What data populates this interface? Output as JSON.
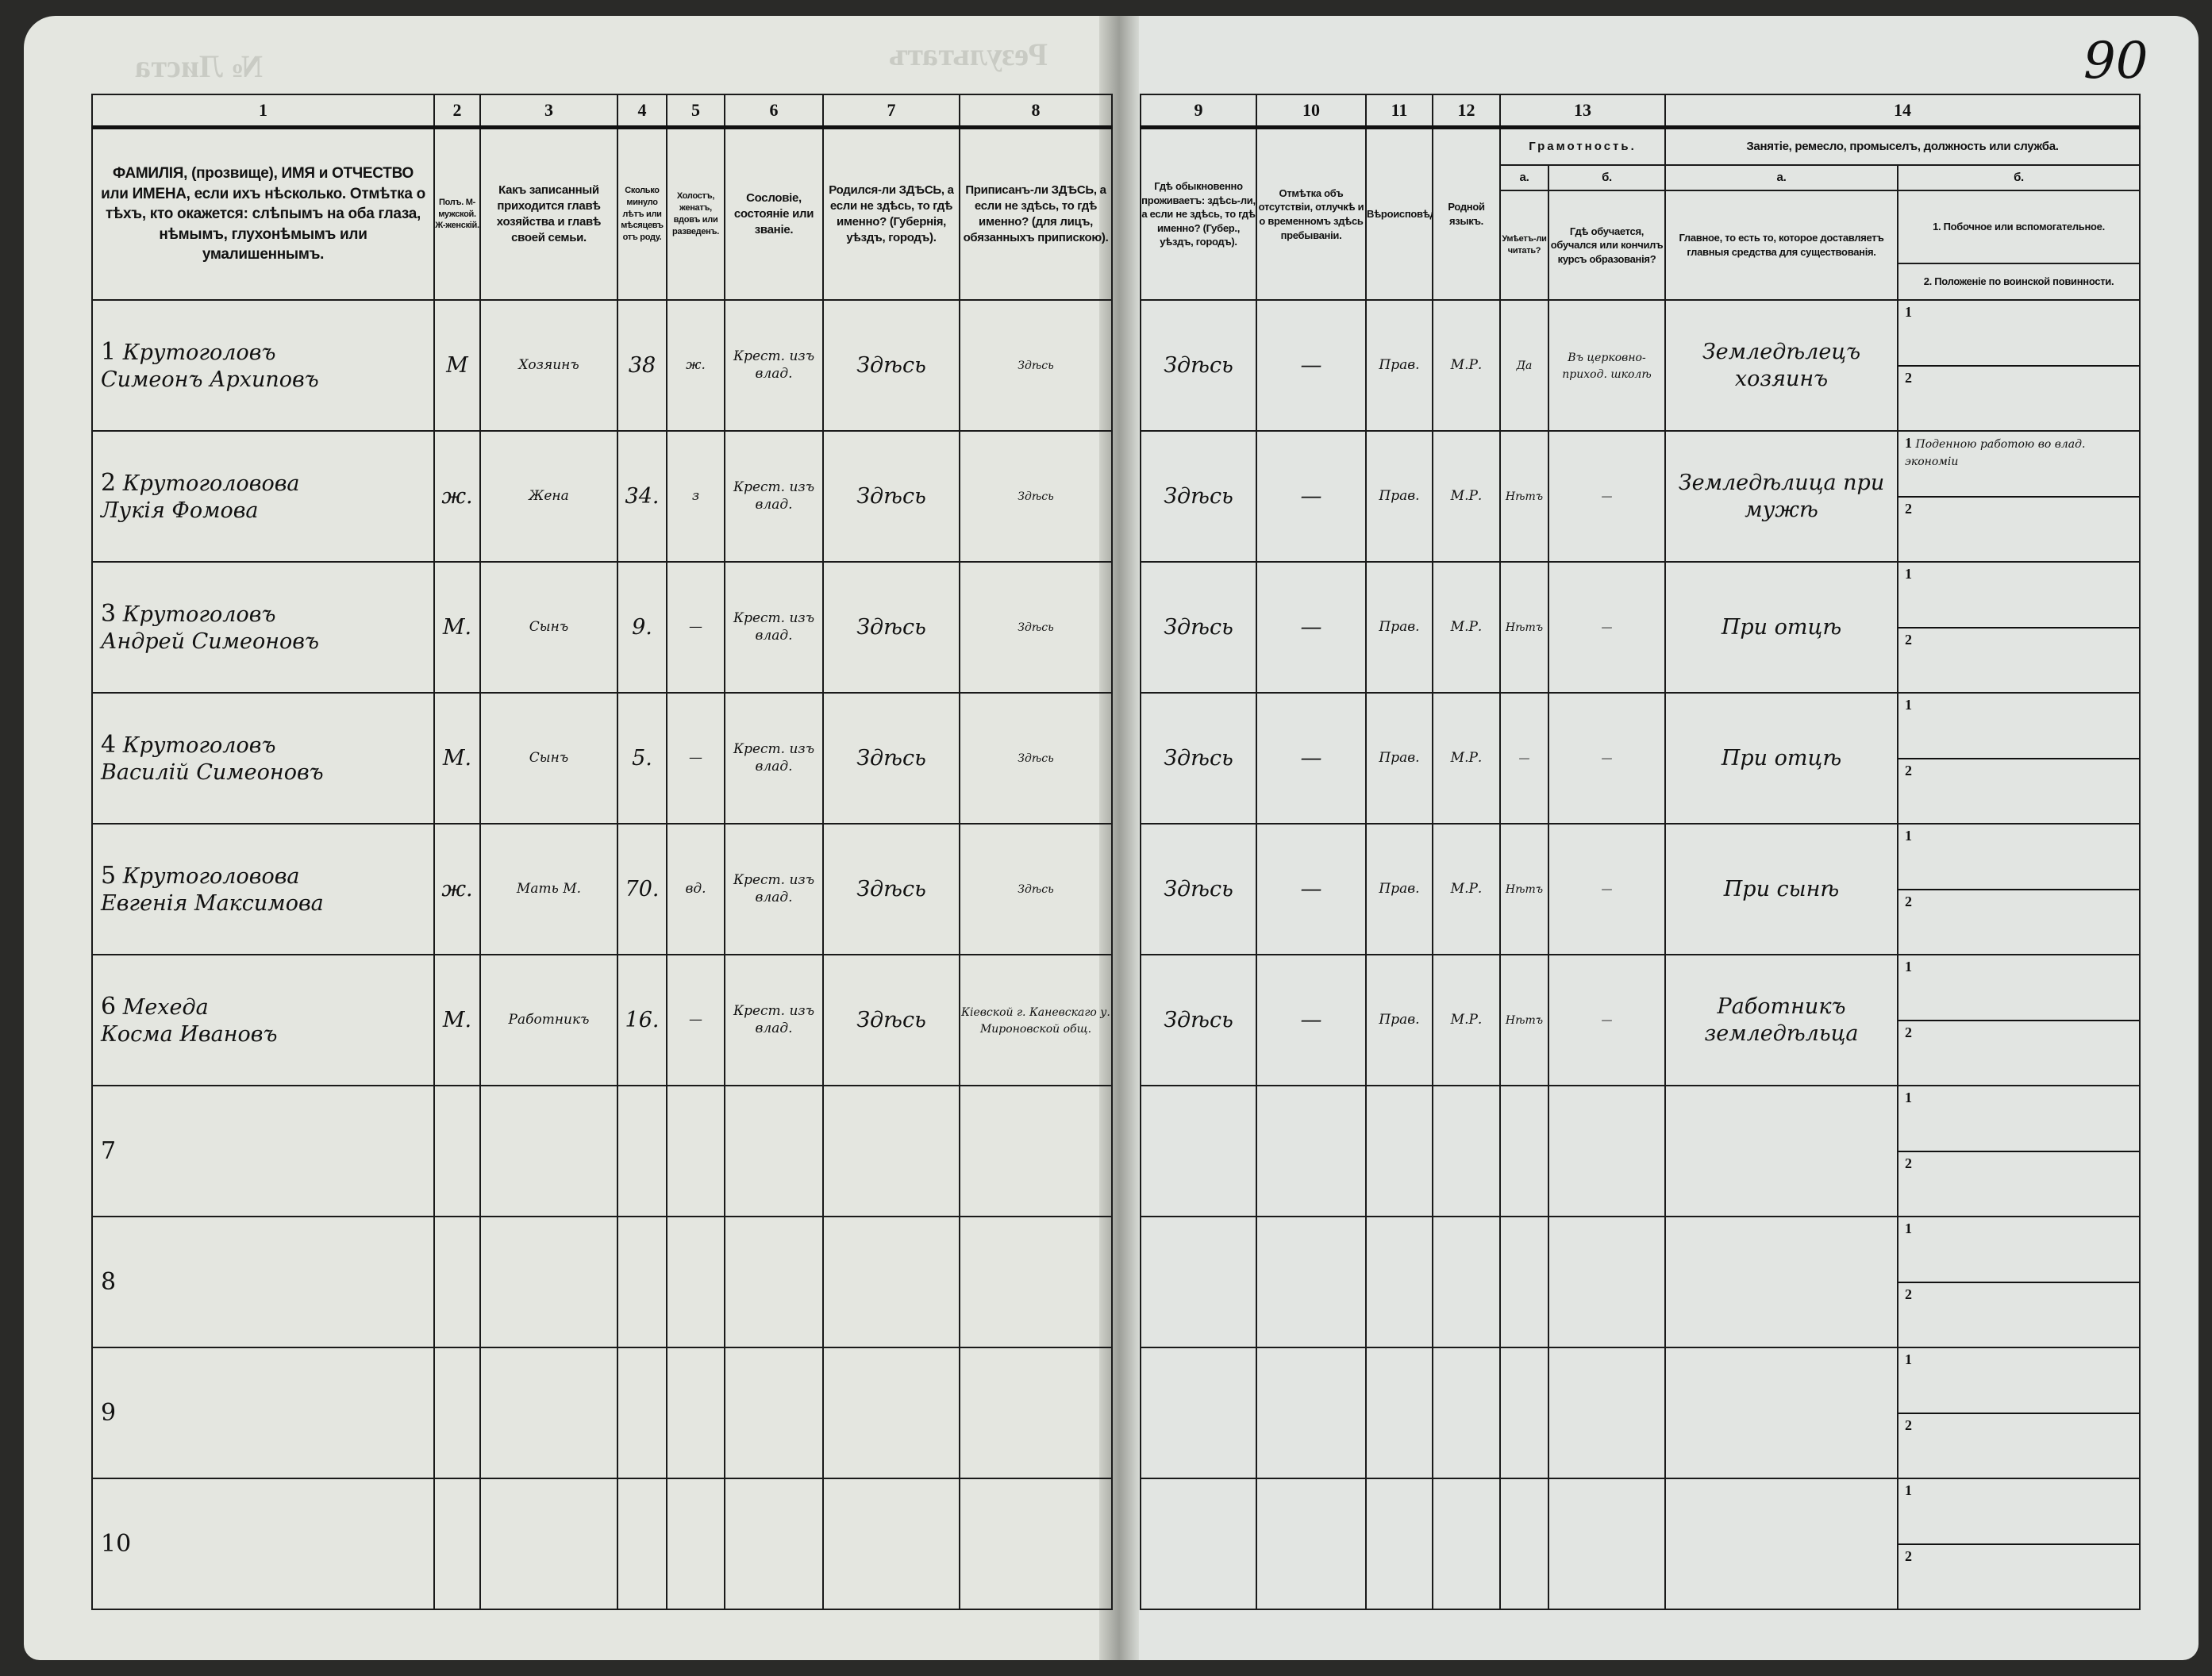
{
  "page_number": "90",
  "ghost_text": {
    "left_header": "№ Листа",
    "left_center": "Результатъ"
  },
  "column_numbers": [
    "1",
    "2",
    "3",
    "4",
    "5",
    "6",
    "7",
    "8",
    "9",
    "10",
    "11",
    "12",
    "13",
    "14"
  ],
  "headers": {
    "c1": "ФАМИЛІЯ, (прозвище), ИМЯ и ОТЧЕСТВО или ИМЕНА, если ихъ нѣсколько. Отмѣтка о тѣхъ, кто окажется: слѣпымъ на оба глаза, нѣмымъ, глухонѣмымъ или умалишеннымъ.",
    "c2": "Полъ. М-мужской. Ж-женскій.",
    "c3": "Какъ записанный приходится главѣ хозяйства и главѣ своей семьи.",
    "c4": "Сколько минуло лѣтъ или мѣсяцевъ отъ роду.",
    "c5": "Холостъ, женатъ, вдовъ или разведенъ.",
    "c6": "Сословіе, состояніе или званіе.",
    "c7": "Родился-ли ЗДѢСЬ, а если не здѣсь, то гдѣ именно? (Губернія, уѣздъ, городъ).",
    "c8": "Приписанъ-ли ЗДѢСЬ, а если не здѣсь, то гдѣ именно? (для лицъ, обязанныхъ припискою).",
    "c9": "Гдѣ обыкновенно проживаетъ: здѣсь-ли, а если не здѣсь, то гдѣ именно? (Губер., уѣздъ, городъ).",
    "c10": "Отмѣтка объ отсутствіи, отлучкѣ и о временномъ здѣсь пребываніи.",
    "c11": "Вѣроисповѣданіе.",
    "c12": "Родной языкъ.",
    "c13": "Грамотность.",
    "c13a_letter": "а.",
    "c13a": "Умѣетъ-ли читать?",
    "c13b_letter": "б.",
    "c13b": "Гдѣ обучается, обучался или кончилъ курсъ образованія?",
    "c14": "Занятіе, ремесло, промыселъ, должность или служба.",
    "c14a_letter": "а.",
    "c14a": "Главное, то есть то, которое доставляетъ главныя средства для существованія.",
    "c14b_letter": "б.",
    "c14b1": "1. Побочное или вспомогательное.",
    "c14b2": "2. Положеніе по воинской повинности."
  },
  "sub_labels": [
    "1",
    "2"
  ],
  "rows": [
    {
      "n": "1",
      "surname": "Крутоголовъ",
      "name": "Симеонъ Архиповъ",
      "sex": "М",
      "relation": "Хозяинъ",
      "age": "38",
      "marital": "ж.",
      "estate": "Крест. изъ влад.",
      "born": "Здѣсь",
      "registered": "Здѣсь",
      "resides": "Здѣсь",
      "absence": "—",
      "religion": "Прав.",
      "language": "М.Р.",
      "literate": "Да",
      "education": "Въ церковно-приход. школѣ",
      "occupation": "Земледѣлецъ хозяинъ",
      "secondary": "",
      "military": ""
    },
    {
      "n": "2",
      "surname": "Крутоголовова",
      "name": "Лукія Фомова",
      "sex": "ж.",
      "relation": "Жена",
      "age": "34.",
      "marital": "з",
      "estate": "Крест. изъ влад.",
      "born": "Здѣсь",
      "registered": "Здѣсь",
      "resides": "Здѣсь",
      "absence": "—",
      "religion": "Прав.",
      "language": "М.Р.",
      "literate": "Нѣтъ",
      "education": "—",
      "occupation": "Земледѣлица при мужѣ",
      "secondary": "Поденною работою во влад. экономіи",
      "military": ""
    },
    {
      "n": "3",
      "surname": "Крутоголовъ",
      "name": "Андрей Симеоновъ",
      "sex": "М.",
      "relation": "Сынъ",
      "age": "9.",
      "marital": "—",
      "estate": "Крест. изъ влад.",
      "born": "Здѣсь",
      "registered": "Здѣсь",
      "resides": "Здѣсь",
      "absence": "—",
      "religion": "Прав.",
      "language": "М.Р.",
      "literate": "Нѣтъ",
      "education": "—",
      "occupation": "При отцѣ",
      "secondary": "",
      "military": ""
    },
    {
      "n": "4",
      "surname": "Крутоголовъ",
      "name": "Василій Симеоновъ",
      "sex": "М.",
      "relation": "Сынъ",
      "age": "5.",
      "marital": "—",
      "estate": "Крест. изъ влад.",
      "born": "Здѣсь",
      "registered": "Здѣсь",
      "resides": "Здѣсь",
      "absence": "—",
      "religion": "Прав.",
      "language": "М.Р.",
      "literate": "—",
      "education": "—",
      "occupation": "При отцѣ",
      "secondary": "",
      "military": ""
    },
    {
      "n": "5",
      "surname": "Крутоголовова",
      "name": "Евгенія Максимова",
      "sex": "ж.",
      "relation": "Мать М.",
      "age": "70.",
      "marital": "вд.",
      "estate": "Крест. изъ влад.",
      "born": "Здѣсь",
      "registered": "Здѣсь",
      "resides": "Здѣсь",
      "absence": "—",
      "religion": "Прав.",
      "language": "М.Р.",
      "literate": "Нѣтъ",
      "education": "—",
      "occupation": "При сынѣ",
      "secondary": "",
      "military": ""
    },
    {
      "n": "6",
      "surname": "Мехеда",
      "name": "Косма Ивановъ",
      "sex": "М.",
      "relation": "Работникъ",
      "age": "16.",
      "marital": "—",
      "estate": "Крест. изъ влад.",
      "born": "Здѣсь",
      "registered": "Кіевской г. Каневскаго у. Мироновской общ.",
      "resides": "Здѣсь",
      "absence": "—",
      "religion": "Прав.",
      "language": "М.Р.",
      "literate": "Нѣтъ",
      "education": "—",
      "occupation": "Работникъ земледѣльца",
      "secondary": "",
      "military": ""
    },
    {
      "n": "7"
    },
    {
      "n": "8"
    },
    {
      "n": "9"
    },
    {
      "n": "10"
    }
  ]
}
